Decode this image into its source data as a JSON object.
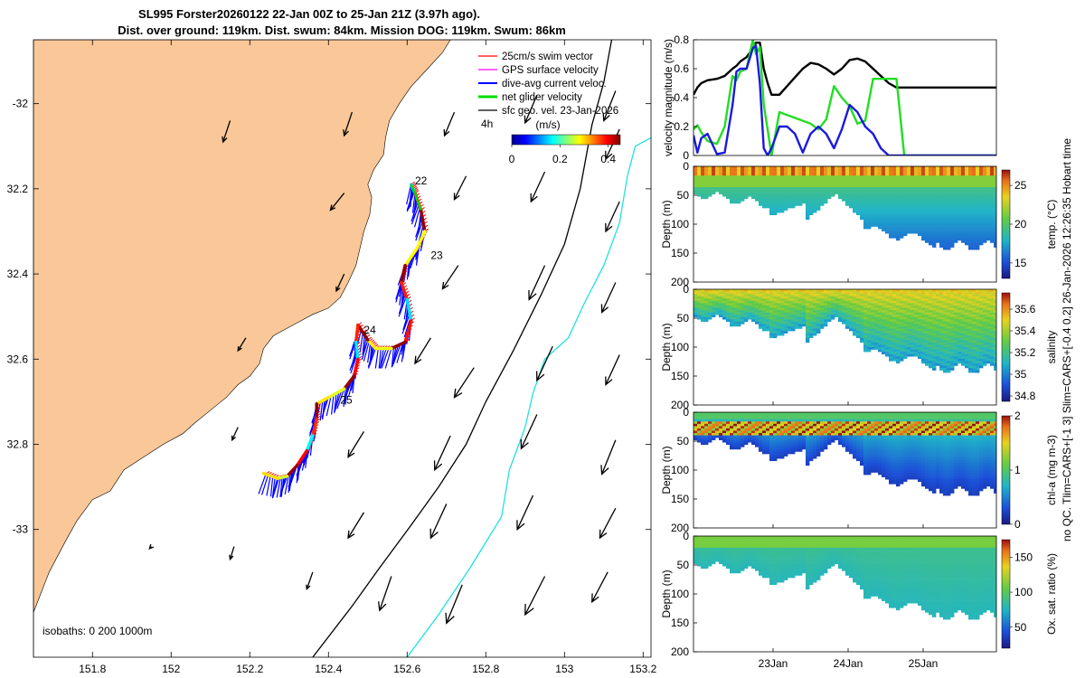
{
  "title_line1": "SL995 Forster20260122 22-Jan 00Z to 25-Jan 21Z (3.97h ago).",
  "title_line2": "Dist. over ground: 119km. Dist. swum: 84km. Mission DOG: 119km. Swum: 86km",
  "side_note": "no QC. Tlim=CARS+[-1 3] Slim=CARS+[-0.4 0.2] 26-Jan-2026 12:26:35 Hobart time",
  "colors": {
    "land": "#fac898",
    "swim_vector": "#ff0000",
    "gps_velocity": "#ff00ff",
    "dive_avg_current": "#0000ff",
    "net_glider": "#00dd00",
    "geo_vel": "#000000",
    "isobath_200": "#000000",
    "isobath_1000": "#22e0e0"
  },
  "chart_data": [
    {
      "type": "map",
      "name": "glider-track-map",
      "xlabel": "",
      "ylabel": "",
      "xlim": [
        151.65,
        153.22
      ],
      "ylim": [
        -33.3,
        -31.85
      ],
      "x_ticks": [
        151.8,
        152,
        152.2,
        152.4,
        152.6,
        152.8,
        153,
        153.2
      ],
      "x_tick_labels": [
        "151.8",
        "152",
        "152.2",
        "152.4",
        "152.6",
        "152.8",
        "153",
        "153.2"
      ],
      "y_ticks": [
        -32,
        -32.2,
        -32.4,
        -32.6,
        -32.8,
        -33
      ],
      "y_tick_labels": [
        "-32",
        "32.2",
        "32.4",
        "32.6",
        "32.8",
        "-33"
      ],
      "legend_position": "top-right",
      "legend": [
        {
          "label": "25cm/s swim vector",
          "color": "#ff0000"
        },
        {
          "label": "GPS surface velocity",
          "color": "#ff00ff"
        },
        {
          "label": "dive-avg current veloc.",
          "color": "#0000ff"
        },
        {
          "label": "net glider velocity",
          "color": "#00dd00"
        },
        {
          "label": "sfc geo. vel. 23-Jan-2026",
          "color": "#000000"
        }
      ],
      "scale_label": "4h",
      "colorbar": {
        "label": "(m/s)",
        "ticks": [
          "0",
          "0.2",
          "0.4"
        ],
        "range": [
          0,
          0.45
        ]
      },
      "isobaths_label": "isobaths: 0   200  1000m",
      "day_labels": [
        {
          "text": "22",
          "lon": 152.62,
          "lat": -32.19
        },
        {
          "text": "23",
          "lon": 152.66,
          "lat": -32.365
        },
        {
          "text": "24",
          "lon": 152.49,
          "lat": -32.54
        },
        {
          "text": "25",
          "lon": 152.43,
          "lat": -32.705
        }
      ],
      "track": [
        [
          152.61,
          -32.19
        ],
        [
          152.62,
          -32.21
        ],
        [
          152.635,
          -32.25
        ],
        [
          152.645,
          -32.3
        ],
        [
          152.625,
          -32.34
        ],
        [
          152.595,
          -32.38
        ],
        [
          152.585,
          -32.42
        ],
        [
          152.6,
          -32.46
        ],
        [
          152.61,
          -32.51
        ],
        [
          152.595,
          -32.56
        ],
        [
          152.56,
          -32.575
        ],
        [
          152.52,
          -32.575
        ],
        [
          152.5,
          -32.555
        ],
        [
          152.475,
          -32.52
        ],
        [
          152.47,
          -32.56
        ],
        [
          152.475,
          -32.6
        ],
        [
          152.465,
          -32.64
        ],
        [
          152.44,
          -32.67
        ],
        [
          152.4,
          -32.69
        ],
        [
          152.37,
          -32.705
        ],
        [
          152.37,
          -32.74
        ],
        [
          152.36,
          -32.78
        ],
        [
          152.345,
          -32.815
        ],
        [
          152.32,
          -32.85
        ],
        [
          152.295,
          -32.875
        ],
        [
          152.27,
          -32.88
        ],
        [
          152.235,
          -32.868
        ]
      ],
      "coastline": [
        [
          151.65,
          -33.195
        ],
        [
          151.69,
          -33.1
        ],
        [
          151.73,
          -33.03
        ],
        [
          151.76,
          -32.98
        ],
        [
          151.8,
          -32.93
        ],
        [
          151.845,
          -32.91
        ],
        [
          151.88,
          -32.86
        ],
        [
          151.93,
          -32.83
        ],
        [
          151.98,
          -32.8
        ],
        [
          152.03,
          -32.775
        ],
        [
          152.06,
          -32.75
        ],
        [
          152.1,
          -32.72
        ],
        [
          152.14,
          -32.69
        ],
        [
          152.17,
          -32.66
        ],
        [
          152.2,
          -32.64
        ],
        [
          152.225,
          -32.61
        ],
        [
          152.235,
          -32.575
        ],
        [
          152.26,
          -32.545
        ],
        [
          152.3,
          -32.525
        ],
        [
          152.33,
          -32.51
        ],
        [
          152.36,
          -32.495
        ],
        [
          152.4,
          -32.48
        ],
        [
          152.43,
          -32.455
        ],
        [
          152.45,
          -32.42
        ],
        [
          152.47,
          -32.38
        ],
        [
          152.48,
          -32.34
        ],
        [
          152.49,
          -32.3
        ],
        [
          152.505,
          -32.26
        ],
        [
          152.51,
          -32.22
        ],
        [
          152.5,
          -32.19
        ],
        [
          152.515,
          -32.155
        ],
        [
          152.54,
          -32.12
        ],
        [
          152.545,
          -32.08
        ],
        [
          152.555,
          -32.04
        ],
        [
          152.58,
          -32.0
        ],
        [
          152.61,
          -31.96
        ],
        [
          152.65,
          -31.92
        ],
        [
          152.69,
          -31.88
        ],
        [
          152.71,
          -31.85
        ]
      ],
      "isobath_200": [
        [
          152.36,
          -33.3
        ],
        [
          152.46,
          -33.18
        ],
        [
          152.53,
          -33.09
        ],
        [
          152.61,
          -32.99
        ],
        [
          152.68,
          -32.9
        ],
        [
          152.75,
          -32.8
        ],
        [
          152.8,
          -32.7
        ],
        [
          152.87,
          -32.58
        ],
        [
          152.94,
          -32.45
        ],
        [
          153.0,
          -32.33
        ],
        [
          153.04,
          -32.2
        ],
        [
          153.07,
          -32.05
        ],
        [
          153.1,
          -31.95
        ],
        [
          153.12,
          -31.85
        ]
      ],
      "isobath_1000": [
        [
          152.6,
          -33.3
        ],
        [
          152.68,
          -33.2
        ],
        [
          152.76,
          -33.09
        ],
        [
          152.84,
          -32.97
        ],
        [
          152.86,
          -32.86
        ],
        [
          152.9,
          -32.76
        ],
        [
          152.92,
          -32.68
        ],
        [
          152.95,
          -32.6
        ],
        [
          153.01,
          -32.55
        ],
        [
          153.05,
          -32.47
        ],
        [
          153.1,
          -32.38
        ],
        [
          153.14,
          -32.28
        ],
        [
          153.16,
          -32.17
        ],
        [
          153.18,
          -32.1
        ],
        [
          153.22,
          -32.08
        ]
      ],
      "current_vectors": [
        [
          152.15,
          -32.04,
          -0.018,
          -0.05
        ],
        [
          152.46,
          -32.02,
          -0.02,
          -0.055
        ],
        [
          152.72,
          -32.02,
          -0.025,
          -0.055
        ],
        [
          152.93,
          -31.98,
          -0.03,
          -0.065
        ],
        [
          153.13,
          -31.97,
          -0.03,
          -0.07
        ],
        [
          153.14,
          -32.06,
          -0.035,
          -0.07
        ],
        [
          152.44,
          -32.21,
          -0.035,
          -0.04
        ],
        [
          152.75,
          -32.17,
          -0.03,
          -0.055
        ],
        [
          152.95,
          -32.16,
          -0.035,
          -0.07
        ],
        [
          153.14,
          -32.23,
          -0.035,
          -0.07
        ],
        [
          152.44,
          -32.4,
          -0.02,
          -0.04
        ],
        [
          152.73,
          -32.38,
          -0.04,
          -0.055
        ],
        [
          152.95,
          -32.38,
          -0.04,
          -0.08
        ],
        [
          153.13,
          -32.42,
          -0.035,
          -0.07
        ],
        [
          152.19,
          -32.55,
          -0.02,
          -0.03
        ],
        [
          152.66,
          -32.55,
          -0.04,
          -0.06
        ],
        [
          152.77,
          -32.62,
          -0.05,
          -0.07
        ],
        [
          152.97,
          -32.57,
          -0.04,
          -0.08
        ],
        [
          153.14,
          -32.59,
          -0.035,
          -0.07
        ],
        [
          152.17,
          -32.76,
          -0.015,
          -0.03
        ],
        [
          152.49,
          -32.77,
          -0.04,
          -0.06
        ],
        [
          152.71,
          -32.78,
          -0.04,
          -0.08
        ],
        [
          152.93,
          -32.73,
          -0.04,
          -0.08
        ],
        [
          153.13,
          -32.79,
          -0.035,
          -0.08
        ],
        [
          152.49,
          -32.96,
          -0.04,
          -0.06
        ],
        [
          152.7,
          -32.94,
          -0.04,
          -0.08
        ],
        [
          152.92,
          -32.92,
          -0.04,
          -0.08
        ],
        [
          153.13,
          -32.95,
          -0.04,
          -0.07
        ],
        [
          151.95,
          -33.04,
          -0.005,
          -0.005
        ],
        [
          152.16,
          -33.04,
          -0.01,
          -0.03
        ],
        [
          152.36,
          -33.1,
          -0.015,
          -0.04
        ],
        [
          152.56,
          -33.11,
          -0.03,
          -0.08
        ],
        [
          152.74,
          -33.13,
          -0.04,
          -0.09
        ],
        [
          152.95,
          -33.11,
          -0.05,
          -0.09
        ],
        [
          153.11,
          -33.1,
          -0.04,
          -0.07
        ]
      ]
    },
    {
      "type": "line",
      "name": "velocity-magnitude",
      "ylabel": "velocity magnitude (m/s)",
      "ylim": [
        0,
        0.8
      ],
      "y_ticks": [
        "0",
        "0.2",
        "0.4",
        "0.6",
        "0.8"
      ],
      "x": [
        0,
        0.05,
        0.1,
        0.18,
        0.3,
        0.4,
        0.5,
        0.55,
        0.6,
        0.68,
        0.76,
        0.8,
        0.85,
        0.9,
        0.95,
        1.0,
        1.1,
        1.2,
        1.3,
        1.4,
        1.5,
        1.6,
        1.7,
        1.8,
        1.9,
        2.0,
        2.1,
        2.2,
        2.3,
        2.4,
        2.5,
        2.6,
        2.7,
        2.8,
        2.9,
        3.0,
        3.1,
        3.2,
        3.3,
        3.4,
        3.5,
        3.6,
        3.7,
        3.88
      ],
      "series": [
        {
          "name": "black",
          "color": "#000000",
          "values": [
            0.42,
            0.47,
            0.5,
            0.52,
            0.53,
            0.55,
            0.6,
            0.62,
            0.65,
            0.68,
            0.74,
            0.78,
            0.78,
            0.6,
            0.5,
            0.42,
            0.42,
            0.48,
            0.54,
            0.6,
            0.64,
            0.63,
            0.6,
            0.56,
            0.6,
            0.66,
            0.67,
            0.65,
            0.6,
            0.55,
            0.5,
            0.47,
            0.47,
            0.47,
            0.47,
            0.47,
            0.47,
            0.47,
            0.47,
            0.47,
            0.47,
            0.47,
            0.47,
            0.47
          ]
        },
        {
          "name": "green",
          "color": "#22dd22",
          "values": [
            0.18,
            0.21,
            0.16,
            0.1,
            0.08,
            0.2,
            0.55,
            0.52,
            0.58,
            0.6,
            0.8,
            0.7,
            0.75,
            0.35,
            0.18,
            0.0,
            0.3,
            0.28,
            0.26,
            0.24,
            0.22,
            0.18,
            0.25,
            0.48,
            0.4,
            0.34,
            0.22,
            0.24,
            0.53,
            0.53,
            0.53,
            0.53,
            0.0,
            0.0,
            0.0,
            0.0,
            0.0,
            0.0,
            0.0,
            0.0,
            0.0,
            0.0,
            0.0,
            0.0
          ]
        },
        {
          "name": "blue",
          "color": "#1a1adf",
          "values": [
            0.14,
            0.02,
            0.12,
            0.15,
            0.01,
            0.02,
            0.35,
            0.58,
            0.6,
            0.6,
            0.74,
            0.76,
            0.5,
            0.05,
            0.0,
            0.05,
            0.2,
            0.2,
            0.15,
            0.02,
            0.15,
            0.2,
            0.15,
            0.05,
            0.18,
            0.35,
            0.3,
            0.2,
            0.15,
            0.05,
            0.0,
            0.0,
            0.0,
            0.0,
            0.0,
            0.0,
            0.0,
            0.0,
            0.0,
            0.0,
            0.0,
            0.0,
            0.0,
            0.0
          ]
        }
      ]
    },
    {
      "type": "heatmap",
      "name": "temperature-section",
      "ylabel": "Depth (m)",
      "y_ticks": [
        "0",
        "50",
        "100",
        "150",
        "200"
      ],
      "ylim": [
        0,
        200
      ],
      "colorbar_label": "temp. (°C)",
      "colorbar_ticks": [
        "15",
        "20",
        "25"
      ],
      "crange": [
        13,
        27
      ]
    },
    {
      "type": "heatmap",
      "name": "salinity-section",
      "ylabel": "Depth (m)",
      "y_ticks": [
        "0",
        "50",
        "100",
        "150",
        "200"
      ],
      "ylim": [
        0,
        200
      ],
      "colorbar_label": "salinity",
      "colorbar_ticks": [
        "34.8",
        "35",
        "35.2",
        "35.4",
        "35.6"
      ],
      "crange": [
        34.75,
        35.75
      ]
    },
    {
      "type": "heatmap",
      "name": "chl-a-section",
      "ylabel": "Depth (m)",
      "y_ticks": [
        "0",
        "50",
        "100",
        "150",
        "200"
      ],
      "ylim": [
        0,
        200
      ],
      "colorbar_label": "chl-a (mg m-3)",
      "colorbar_ticks": [
        "0",
        "1",
        "2"
      ],
      "crange": [
        0,
        2
      ]
    },
    {
      "type": "heatmap",
      "name": "oxygen-section",
      "ylabel": "Depth (m)",
      "y_ticks": [
        "0",
        "50",
        "100",
        "150",
        "200"
      ],
      "ylim": [
        0,
        200
      ],
      "x_ticks": [
        "23Jan",
        "24Jan",
        "25Jan"
      ],
      "colorbar_label": "Ox. sat. ratio (%)",
      "colorbar_ticks": [
        "50",
        "100",
        "150"
      ],
      "crange": [
        20,
        175
      ]
    }
  ]
}
